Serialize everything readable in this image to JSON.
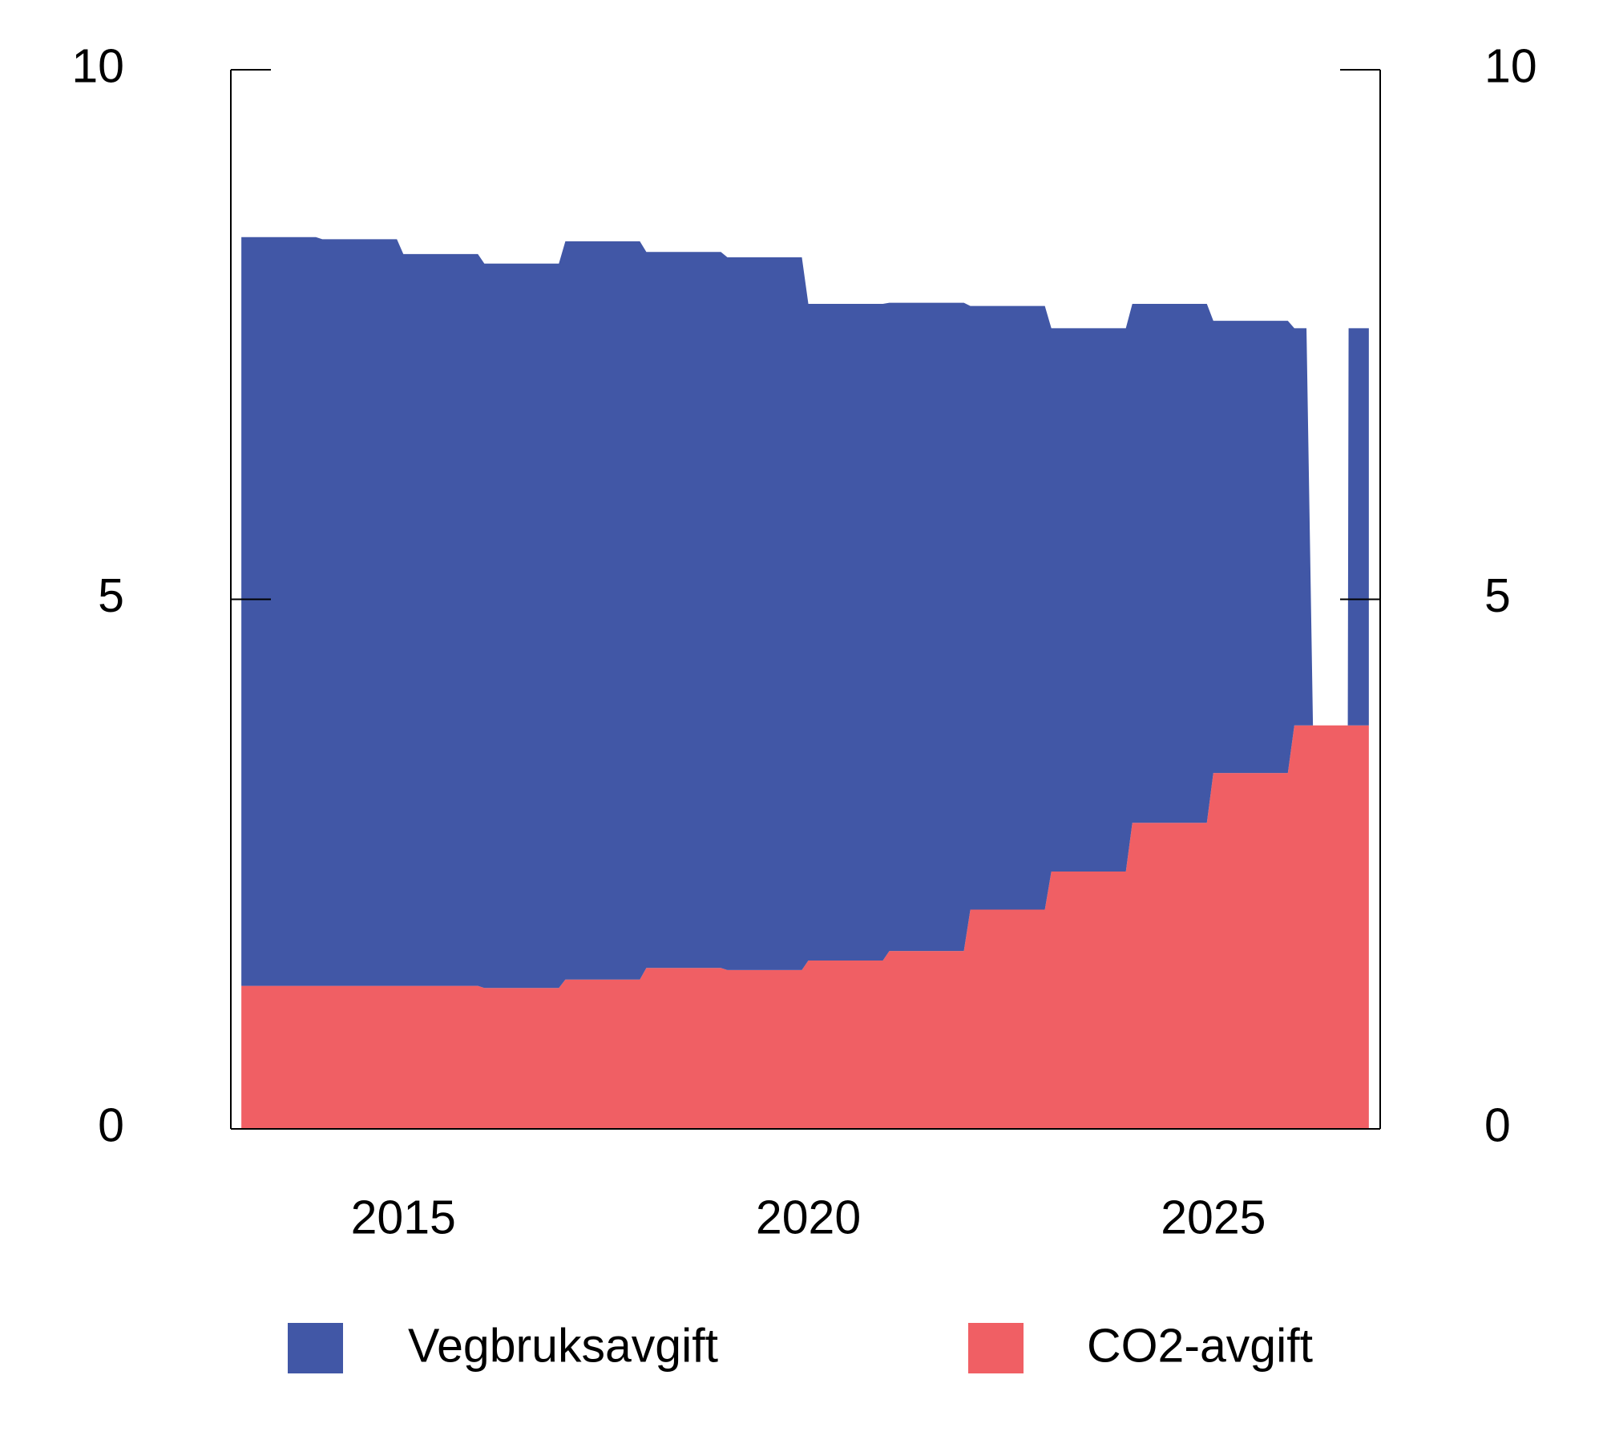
{
  "chart_data": {
    "type": "stacked_area",
    "x": [
      2013,
      2013.92,
      2014,
      2014.92,
      2015,
      2015.92,
      2016,
      2016.92,
      2017,
      2017.92,
      2018,
      2018.92,
      2019,
      2019.92,
      2020,
      2020.92,
      2021,
      2021.92,
      2022,
      2022.92,
      2023,
      2023.92,
      2024,
      2024.92,
      2025,
      2025.92,
      2026,
      2026.15,
      2026.23,
      2026.66,
      2026.67,
      2026.92
    ],
    "series": [
      {
        "name": "CO2-avgift",
        "color": "#f05f64",
        "values": [
          1.35,
          1.35,
          1.35,
          1.35,
          1.35,
          1.35,
          1.33,
          1.33,
          1.41,
          1.41,
          1.52,
          1.52,
          1.5,
          1.5,
          1.59,
          1.59,
          1.68,
          1.68,
          2.07,
          2.07,
          2.43,
          2.43,
          2.89,
          2.89,
          3.36,
          3.36,
          3.81,
          3.81,
          3.81,
          3.81,
          3.81,
          3.81
        ]
      },
      {
        "name": "Vegbruksavgift",
        "color": "#4157a6",
        "values": [
          7.07,
          7.07,
          7.05,
          7.05,
          6.91,
          6.91,
          6.84,
          6.84,
          6.97,
          6.97,
          6.76,
          6.76,
          6.73,
          6.73,
          6.2,
          6.2,
          6.12,
          6.12,
          5.7,
          5.7,
          5.13,
          5.13,
          4.9,
          4.9,
          4.27,
          4.27,
          3.75,
          3.75,
          0,
          0,
          3.75,
          3.75
        ]
      }
    ],
    "legend_order": [
      "Vegbruksavgift",
      "CO2-avgift"
    ],
    "xlim": [
      2012.87,
      2027.06
    ],
    "xticks": [
      2015,
      2020,
      2025
    ],
    "ylim": [
      0,
      10
    ],
    "yticks": [
      0,
      5,
      10
    ],
    "y2lim": [
      0,
      10
    ],
    "y2ticks": [
      0,
      5,
      10
    ],
    "legend": "bottom"
  }
}
